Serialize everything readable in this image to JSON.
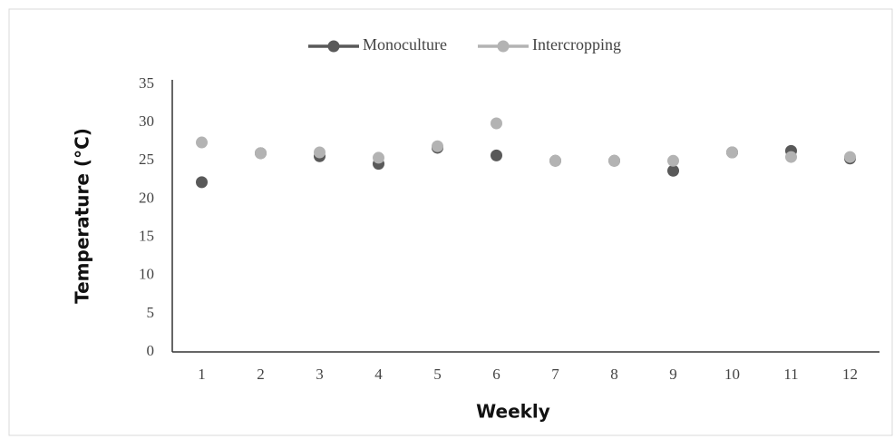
{
  "chart_data": {
    "type": "line",
    "categories": [
      "1",
      "2",
      "3",
      "4",
      "5",
      "6",
      "7",
      "8",
      "9",
      "10",
      "11",
      "12"
    ],
    "series": [
      {
        "name": "Monoculture",
        "color": "#595959",
        "values": [
          22.2,
          26.0,
          25.6,
          24.6,
          26.7,
          25.7,
          25.0,
          25.0,
          23.7,
          26.1,
          26.3,
          25.3
        ]
      },
      {
        "name": "Intercropping",
        "color": "#b3b3b3",
        "values": [
          27.4,
          26.0,
          26.1,
          25.4,
          26.9,
          29.9,
          25.0,
          25.0,
          25.0,
          26.1,
          25.5,
          25.5
        ]
      }
    ],
    "ylim": [
      0,
      35
    ],
    "yticks": [
      0,
      5,
      10,
      15,
      20,
      25,
      30,
      35
    ],
    "ylabel": "Temperature (°C)",
    "xlabel": "Weekly",
    "legend": "top",
    "grid": false
  }
}
